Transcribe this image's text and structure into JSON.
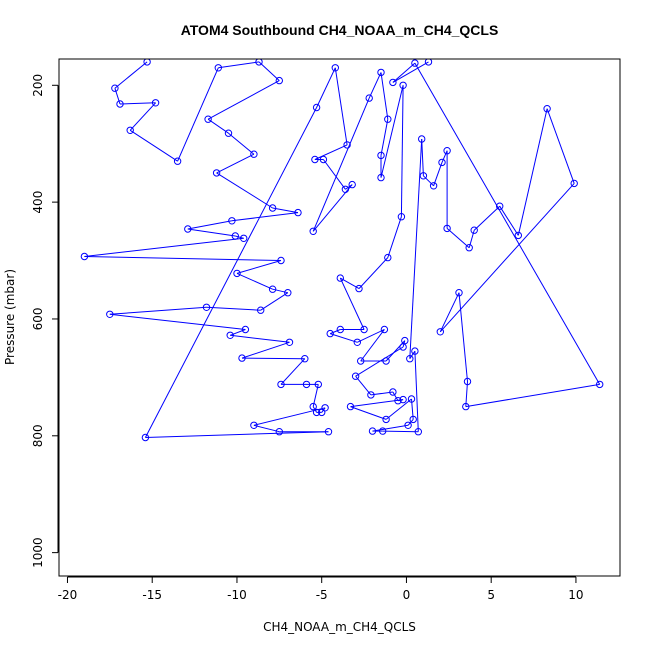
{
  "chart_data": {
    "type": "scatter",
    "title": "ATOM4 Southbound CH4_NOAA_m_CH4_QCLS",
    "xlabel": "CH4_NOAA_m_CH4_QCLS",
    "ylabel": "Pressure (mbar)",
    "xlim": [
      -20.5,
      12.6
    ],
    "ylim": [
      1040,
      155
    ],
    "y_reversed": true,
    "grid": false,
    "x_ticks": [
      -20,
      -15,
      -10,
      -5,
      0,
      5,
      10
    ],
    "x_tick_labels": [
      "-20",
      "-15",
      "-10",
      "-5",
      "0",
      "5",
      "10"
    ],
    "y_ticks": [
      200,
      400,
      600,
      800,
      1000
    ],
    "y_tick_labels": [
      "200",
      "400",
      "600",
      "800",
      "1000"
    ],
    "series": [
      {
        "color": "#0000ff",
        "marker": "open-circle",
        "line": true,
        "points": [
          [
            -15.3,
            160
          ],
          [
            -17.2,
            205
          ],
          [
            -16.9,
            232
          ],
          [
            -14.8,
            230
          ],
          [
            -16.3,
            277
          ],
          [
            -13.5,
            330
          ],
          [
            -11.1,
            170
          ],
          [
            -8.7,
            160
          ],
          [
            -7.5,
            192
          ],
          [
            -11.7,
            258
          ],
          [
            -10.5,
            282
          ],
          [
            -9.0,
            318
          ],
          [
            -11.2,
            350
          ],
          [
            -7.9,
            410
          ],
          [
            -6.4,
            418
          ],
          [
            -10.3,
            432
          ],
          [
            -12.9,
            446
          ],
          [
            -10.1,
            458
          ],
          [
            -9.6,
            462
          ],
          [
            -19.0,
            493
          ],
          [
            -7.4,
            500
          ],
          [
            -10.0,
            522
          ],
          [
            -7.9,
            549
          ],
          [
            -7.0,
            555
          ],
          [
            -8.6,
            585
          ],
          [
            -11.8,
            580
          ],
          [
            -17.5,
            592
          ],
          [
            -9.5,
            618
          ],
          [
            -10.4,
            628
          ],
          [
            -6.9,
            640
          ],
          [
            -9.7,
            667
          ],
          [
            -6.0,
            668
          ],
          [
            -7.4,
            712
          ],
          [
            -5.9,
            712
          ],
          [
            -5.2,
            712
          ],
          [
            -5.5,
            750
          ],
          [
            -5.3,
            760
          ],
          [
            -5.0,
            760
          ],
          [
            -4.8,
            752
          ],
          [
            -9.0,
            782
          ],
          [
            -7.5,
            793
          ],
          [
            -4.6,
            793
          ],
          [
            -15.4,
            803
          ],
          [
            -5.3,
            238
          ],
          [
            -4.2,
            170
          ],
          [
            -3.5,
            302
          ],
          [
            -5.4,
            327
          ],
          [
            -4.9,
            327
          ],
          [
            -3.6,
            378
          ],
          [
            -3.2,
            370
          ],
          [
            -5.5,
            450
          ],
          [
            -2.2,
            222
          ],
          [
            -1.5,
            178
          ],
          [
            -1.1,
            258
          ],
          [
            -1.5,
            320
          ],
          [
            -1.5,
            358
          ],
          [
            -0.2,
            200
          ],
          [
            -0.3,
            425
          ],
          [
            -1.1,
            495
          ],
          [
            -2.8,
            548
          ],
          [
            -3.9,
            530
          ],
          [
            -2.5,
            618
          ],
          [
            -3.9,
            618
          ],
          [
            -4.5,
            625
          ],
          [
            -2.9,
            640
          ],
          [
            -1.3,
            618
          ],
          [
            -2.7,
            672
          ],
          [
            -1.2,
            672
          ],
          [
            -0.1,
            637
          ],
          [
            -0.2,
            648
          ],
          [
            -3.0,
            698
          ],
          [
            -2.1,
            730
          ],
          [
            -0.8,
            725
          ],
          [
            -0.5,
            740
          ],
          [
            -0.2,
            738
          ],
          [
            -3.3,
            750
          ],
          [
            -1.2,
            772
          ],
          [
            0.3,
            737
          ],
          [
            0.4,
            772
          ],
          [
            0.1,
            782
          ],
          [
            -2.0,
            792
          ],
          [
            -1.4,
            792
          ],
          [
            0.7,
            793
          ],
          [
            0.5,
            655
          ],
          [
            0.2,
            668
          ],
          [
            0.9,
            292
          ],
          [
            1.0,
            355
          ],
          [
            1.6,
            372
          ],
          [
            2.1,
            332
          ],
          [
            2.4,
            312
          ],
          [
            2.4,
            445
          ],
          [
            3.7,
            478
          ],
          [
            4.0,
            448
          ],
          [
            5.5,
            407
          ],
          [
            6.6,
            457
          ],
          [
            8.3,
            240
          ],
          [
            9.9,
            368
          ],
          [
            2.0,
            622
          ],
          [
            3.1,
            555
          ],
          [
            3.6,
            707
          ],
          [
            3.5,
            750
          ],
          [
            11.4,
            712
          ],
          [
            0.5,
            162
          ],
          [
            -0.8,
            195
          ],
          [
            1.3,
            160
          ]
        ]
      }
    ]
  }
}
